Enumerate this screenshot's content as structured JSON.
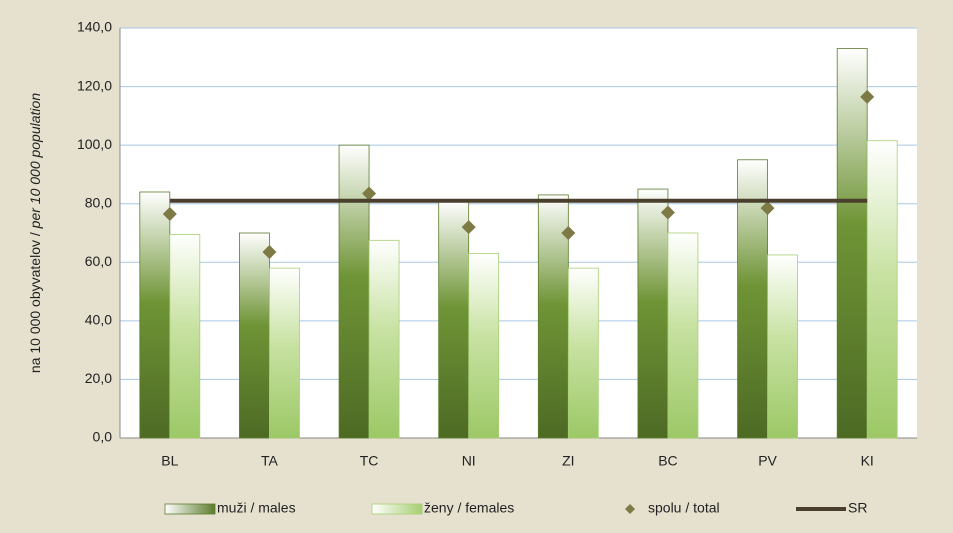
{
  "chart_data": {
    "type": "bar",
    "y_label": [
      "na 10 000 obyvatelov /",
      "per 10 000 population"
    ],
    "categories": [
      "BL",
      "TA",
      "TC",
      "NI",
      "ZI",
      "BC",
      "PV",
      "KI"
    ],
    "series": [
      {
        "name": "muži / males",
        "type": "bar",
        "color": "#5b7c2c",
        "values": [
          84,
          70,
          100,
          81,
          83,
          85,
          95,
          133
        ]
      },
      {
        "name": "ženy / females",
        "type": "bar",
        "color": "#a6cf72",
        "values": [
          69.5,
          58,
          67.5,
          63,
          58,
          70,
          62.5,
          101.5
        ]
      },
      {
        "name": "spolu / total",
        "type": "scatter",
        "color": "#7d7a45",
        "values": [
          76.5,
          63.5,
          83.5,
          72,
          70,
          77,
          78.5,
          116.5
        ]
      },
      {
        "name": "SR",
        "type": "line",
        "color": "#4a3f2c",
        "values": [
          81,
          81,
          81,
          81,
          81,
          81,
          81,
          81
        ]
      }
    ],
    "ylim": [
      0,
      140
    ],
    "yticks": [
      {
        "value": 0,
        "label": "0,0"
      },
      {
        "value": 20,
        "label": "20,0"
      },
      {
        "value": 40,
        "label": "40,0"
      },
      {
        "value": 60,
        "label": "60,0"
      },
      {
        "value": 80,
        "label": "80,0"
      },
      {
        "value": 100,
        "label": "100,0"
      },
      {
        "value": 120,
        "label": "120,0"
      },
      {
        "value": 140,
        "label": "140,0"
      }
    ],
    "grid": true
  }
}
